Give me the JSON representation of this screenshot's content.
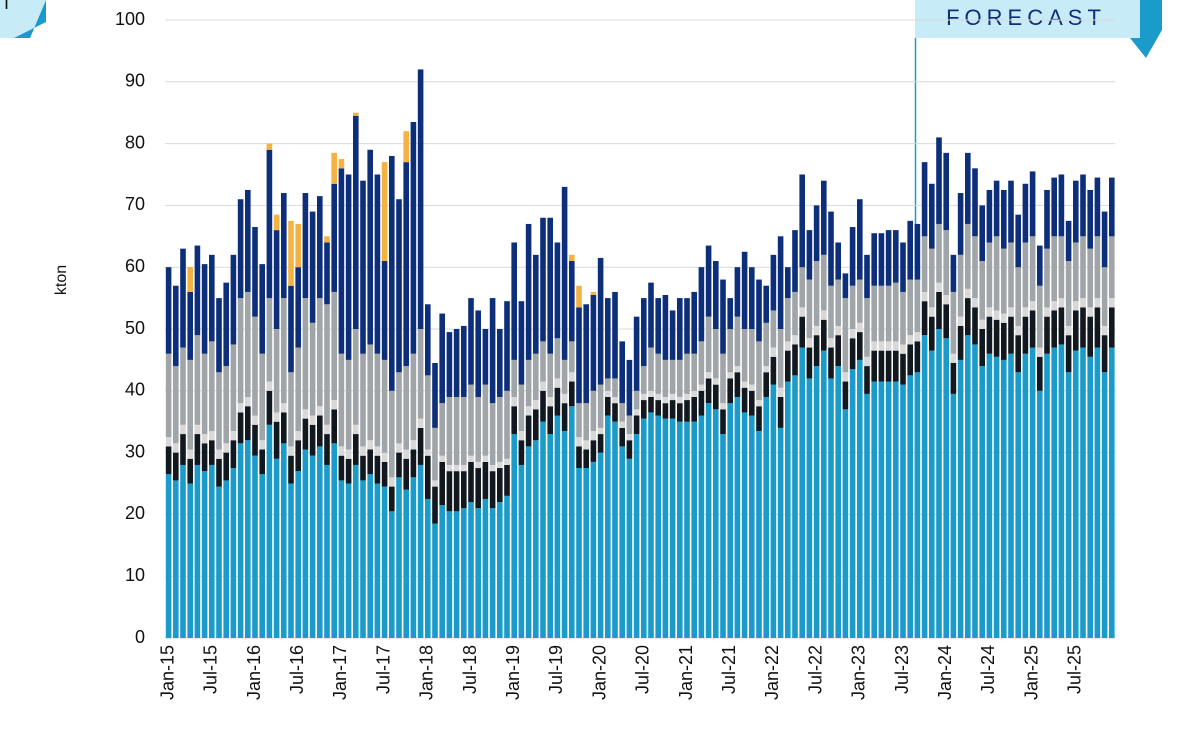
{
  "chart_data": {
    "type": "stacked_bar",
    "y_label": "kton",
    "annotation": "FORECAST",
    "corner_badge": "T",
    "ylim": [
      0,
      100
    ],
    "yticks": [
      0,
      10,
      20,
      30,
      40,
      50,
      60,
      70,
      80,
      90,
      100
    ],
    "grid": true,
    "categories": [
      "Jan-15",
      null,
      null,
      null,
      null,
      null,
      "Jul-15",
      null,
      null,
      null,
      null,
      null,
      "Jan-16",
      null,
      null,
      null,
      null,
      null,
      "Jul-16",
      null,
      null,
      null,
      null,
      null,
      "Jan-17",
      null,
      null,
      null,
      null,
      null,
      "Jul-17",
      null,
      null,
      null,
      null,
      null,
      "Jan-18",
      null,
      null,
      null,
      null,
      null,
      "Jul-18",
      null,
      null,
      null,
      null,
      null,
      "Jan-19",
      null,
      null,
      null,
      null,
      null,
      "Jul-19",
      null,
      null,
      null,
      null,
      null,
      "Jan-20",
      null,
      null,
      null,
      null,
      null,
      "Jul-20",
      null,
      null,
      null,
      null,
      null,
      "Jan-21",
      null,
      null,
      null,
      null,
      null,
      "Jul-21",
      null,
      null,
      null,
      null,
      null,
      "Jan-22",
      null,
      null,
      null,
      null,
      null,
      "Jul-22",
      null,
      null,
      null,
      null,
      null,
      "Jan-23",
      null,
      null,
      null,
      null,
      null,
      "Jul-23",
      null,
      null,
      null,
      null,
      null,
      "Jan-24",
      null,
      null,
      null,
      null,
      null,
      "Jul-24",
      null,
      null,
      null,
      null,
      null,
      "Jan-25",
      null,
      null,
      null,
      null,
      null,
      "Jul-25",
      null,
      null,
      null,
      null,
      null
    ],
    "series": [
      {
        "color": "#1b9bc9",
        "values": [
          26.5,
          25.5,
          28,
          25,
          28,
          27,
          28,
          24.5,
          25.5,
          27.5,
          31.5,
          32,
          29.5,
          26.5,
          34.5,
          29,
          31.5,
          25,
          27,
          30.5,
          29.5,
          31,
          28,
          31.5,
          25.5,
          25,
          28,
          25.5,
          26.5,
          25,
          24.5,
          20.5,
          26,
          24,
          26,
          28,
          22.5,
          18.5,
          21.5,
          20.5,
          20.5,
          21,
          22,
          21,
          22.5,
          21,
          22,
          23,
          33,
          28,
          31,
          32,
          35,
          33,
          36,
          33.5,
          37.5,
          27.5,
          27.5,
          28.5,
          30,
          36,
          35,
          31,
          29,
          33,
          35.5,
          36.5,
          36,
          35.5,
          35.5,
          35,
          35,
          35,
          36,
          38,
          37,
          33,
          38,
          39,
          36.5,
          36,
          33.5,
          39,
          41,
          34,
          41.5,
          42.5,
          47,
          42,
          44,
          46.5,
          42,
          44,
          37,
          43.5,
          45,
          39.5,
          41.5,
          41.5,
          41.5,
          41.5,
          41,
          42.5,
          43,
          49,
          46.5,
          50,
          48.5,
          39.5,
          45,
          49,
          47.5,
          44,
          46,
          45.5,
          45,
          46,
          43,
          46,
          47,
          40,
          46,
          47,
          47.5,
          43,
          46.5,
          47,
          45.5,
          47,
          43,
          47
        ]
      },
      {
        "color": "#111820",
        "values": [
          4.5,
          4.5,
          5,
          4,
          5,
          4.5,
          4,
          4.5,
          4.5,
          4.5,
          5,
          5.5,
          5,
          4,
          5.5,
          6,
          5,
          4.5,
          5,
          5,
          5,
          5,
          5,
          5.5,
          4,
          4,
          5,
          4,
          4,
          4.5,
          4,
          4,
          4,
          5,
          4.5,
          6,
          7,
          6,
          7,
          6.5,
          6.5,
          6,
          6.5,
          6.5,
          6,
          6,
          5.5,
          5,
          4.5,
          4,
          5,
          5,
          5,
          4.5,
          4.5,
          4.5,
          4,
          3.5,
          3,
          3.5,
          3,
          3,
          3,
          3,
          3,
          3,
          3,
          2.5,
          2.5,
          2.5,
          3,
          3,
          3.5,
          4,
          4,
          4,
          4,
          4,
          4,
          4,
          4,
          4,
          4,
          4,
          4.5,
          5,
          5,
          5,
          5,
          5,
          5,
          5,
          5,
          5,
          4.5,
          5,
          4.5,
          4.5,
          5,
          5,
          5,
          5,
          5,
          5,
          5,
          5.5,
          5.5,
          6,
          5.5,
          5,
          5.5,
          6,
          6,
          6,
          6,
          6,
          6,
          6,
          6,
          6,
          6,
          5.5,
          6,
          6,
          6,
          6,
          6.5,
          6.5,
          6.5,
          6.5,
          6,
          6.5
        ]
      },
      {
        "color": "#d8d8d8",
        "values": [
          1.5,
          1.5,
          1.5,
          1.5,
          1.5,
          1.5,
          1.5,
          1.5,
          1.5,
          1.5,
          1.5,
          1.5,
          1.5,
          1.5,
          1.5,
          1.5,
          1.5,
          1.5,
          1.5,
          1.5,
          1.5,
          1.5,
          1.5,
          1.5,
          1.5,
          1.5,
          1.5,
          1.5,
          1.5,
          1.5,
          1.5,
          1.5,
          1.5,
          1.5,
          1.5,
          1.5,
          1,
          1,
          1,
          1,
          1,
          1,
          1,
          1,
          1,
          1,
          1,
          1,
          1.5,
          1.5,
          1.5,
          1.5,
          1.5,
          1.5,
          1.5,
          1.5,
          1.5,
          1.5,
          1.5,
          1.5,
          1,
          1,
          1,
          1,
          1,
          1,
          1,
          1,
          1,
          1,
          1,
          1,
          1,
          1,
          1,
          1,
          1,
          1,
          1,
          1,
          1,
          1,
          1,
          1,
          1.5,
          1.5,
          1.5,
          1.5,
          1.5,
          1.5,
          1.5,
          1.5,
          1.5,
          1.5,
          1.5,
          1.5,
          1.5,
          1.5,
          1.5,
          1.5,
          1.5,
          1.5,
          1.5,
          1.5,
          1.5,
          1.5,
          1.5,
          1.5,
          1.5,
          1.5,
          1.5,
          1.5,
          1.5,
          1.5,
          1.5,
          1.5,
          1.5,
          1.5,
          1.5,
          1.5,
          1.5,
          1.5,
          1.5,
          1.5,
          1.5,
          1.5,
          1.5,
          1.5,
          1.5,
          1.5,
          1.5,
          1.5
        ]
      },
      {
        "color": "#a0a5aa",
        "values": [
          13.5,
          12.5,
          12.5,
          14.5,
          14.5,
          13,
          14.5,
          12.5,
          12.5,
          14,
          17,
          17,
          16,
          14,
          13.5,
          13.5,
          17,
          12,
          13.5,
          18,
          15,
          17.5,
          19.5,
          17.5,
          15,
          14.5,
          15.5,
          15,
          15.5,
          15,
          15,
          14,
          11.5,
          13.5,
          14,
          14.5,
          12,
          8.5,
          8.5,
          11,
          11,
          11,
          11.5,
          10.5,
          11.5,
          10,
          10.5,
          11,
          6,
          7.5,
          7.5,
          7.5,
          6.5,
          7,
          6.5,
          5.5,
          5,
          5.5,
          6,
          6.5,
          7,
          2,
          3,
          3,
          3,
          3,
          4.5,
          7,
          6.5,
          6,
          5.5,
          6,
          6.5,
          6,
          7,
          9,
          8,
          8,
          7,
          8,
          8.5,
          9,
          9.5,
          7,
          6,
          9.5,
          7,
          7,
          6.5,
          9.5,
          10.5,
          9,
          8.5,
          7.5,
          12,
          7,
          7,
          9.5,
          9,
          9,
          9,
          9.5,
          8.5,
          9,
          8.5,
          9,
          9.5,
          9.5,
          10.5,
          10,
          10,
          10.5,
          10,
          9.5,
          10.5,
          12,
          10.5,
          10.5,
          9.5,
          10.5,
          10.5,
          10,
          9.5,
          10.5,
          10,
          10.5,
          9.5,
          10,
          9.5,
          10,
          9.5,
          10
        ]
      },
      {
        "color": "#0d2f7a",
        "values": [
          14,
          13,
          16,
          11,
          14.5,
          14.5,
          14,
          12,
          13.5,
          14.5,
          16,
          16.5,
          14.5,
          14.5,
          24,
          16,
          17,
          14,
          13,
          17,
          18,
          16.5,
          10,
          17.5,
          30,
          30,
          34.5,
          28,
          31.5,
          29,
          16,
          38,
          28,
          33,
          37.5,
          42,
          11.5,
          10.5,
          14.5,
          10.5,
          11,
          11.5,
          14,
          14,
          9,
          17,
          11,
          14.5,
          19,
          13.5,
          22,
          16,
          20,
          22,
          15.5,
          28,
          13,
          15.5,
          16,
          15.5,
          20.5,
          13,
          14,
          10,
          9,
          12,
          11,
          10.5,
          9,
          10.5,
          8,
          10,
          9,
          10,
          12,
          11.5,
          11,
          12,
          5,
          8,
          12.5,
          10,
          10,
          6,
          9,
          15,
          5,
          10,
          15,
          8,
          9,
          12,
          12,
          6,
          4,
          9.5,
          13,
          7,
          8.5,
          8.5,
          9,
          8.5,
          8,
          9.5,
          9,
          12,
          10.5,
          14,
          12.5,
          6,
          10,
          11.5,
          11,
          9,
          8.5,
          9,
          9.5,
          10,
          8.5,
          9.5,
          10.5,
          6.5,
          9.5,
          9.5,
          10,
          6.5,
          10,
          10,
          9.5,
          9.5,
          9,
          9.5
        ]
      },
      {
        "color": "#f3b243",
        "values": [
          0,
          0,
          0,
          4,
          0,
          0,
          0,
          0,
          0,
          0,
          0,
          0,
          0,
          0,
          1,
          2.5,
          0,
          10.5,
          7,
          0,
          0,
          0,
          1,
          5,
          1.5,
          0,
          0.5,
          0,
          0,
          0,
          16,
          0,
          0,
          5,
          0,
          0,
          0,
          0,
          0,
          0,
          0,
          0,
          0,
          0,
          0,
          0,
          0,
          0,
          0,
          0,
          0,
          0,
          0,
          0,
          0,
          0,
          1,
          3.5,
          0,
          0.5,
          0,
          0,
          0,
          0,
          0,
          0,
          0,
          0,
          0,
          0,
          0,
          0,
          0,
          0,
          0,
          0,
          0,
          0,
          0,
          0,
          0,
          0,
          0,
          0,
          0,
          0,
          0,
          0,
          0,
          0,
          0,
          0,
          0,
          0,
          0,
          0,
          0,
          0,
          0,
          0,
          0,
          0,
          0,
          0,
          0,
          0,
          0,
          0,
          0,
          0,
          0,
          0,
          0,
          0,
          0,
          0,
          0,
          0,
          0,
          0,
          0,
          0,
          0,
          0,
          0,
          0,
          0,
          0,
          0,
          0,
          0,
          0
        ]
      }
    ]
  }
}
